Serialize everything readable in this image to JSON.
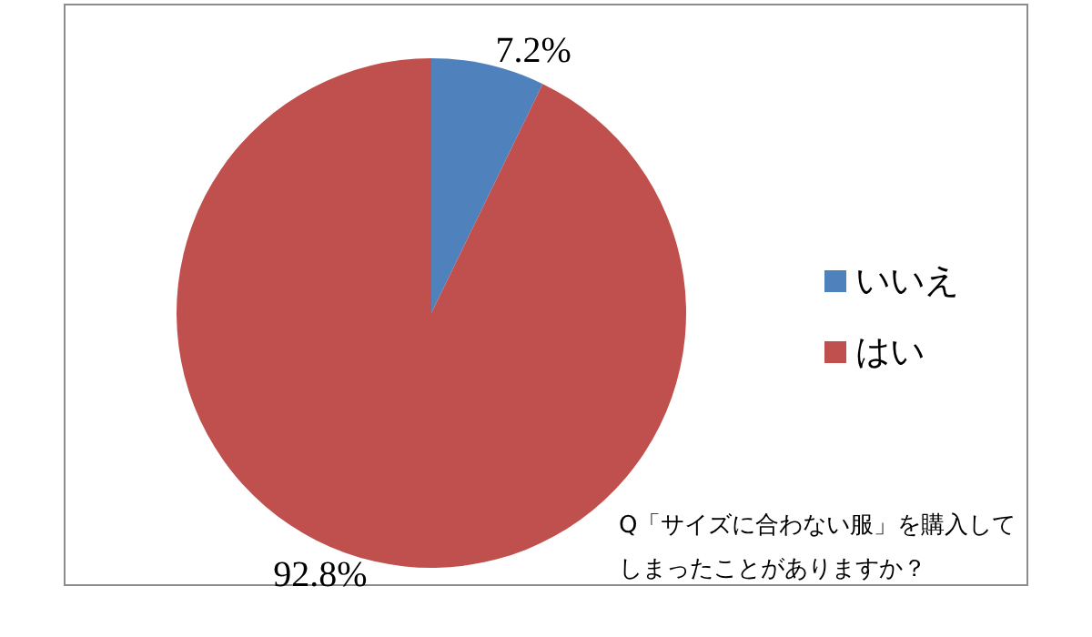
{
  "chart_data": {
    "type": "pie",
    "categories": [
      "いいえ",
      "はい"
    ],
    "values": [
      7.2,
      92.8
    ],
    "colors": [
      "#4f81bd",
      "#c0504d"
    ],
    "value_labels": [
      "7.2%",
      "92.8%"
    ],
    "legend": "right",
    "annotations": [
      "Q「サイズに合わない服」を購入してしまったことがありますか？"
    ]
  }
}
